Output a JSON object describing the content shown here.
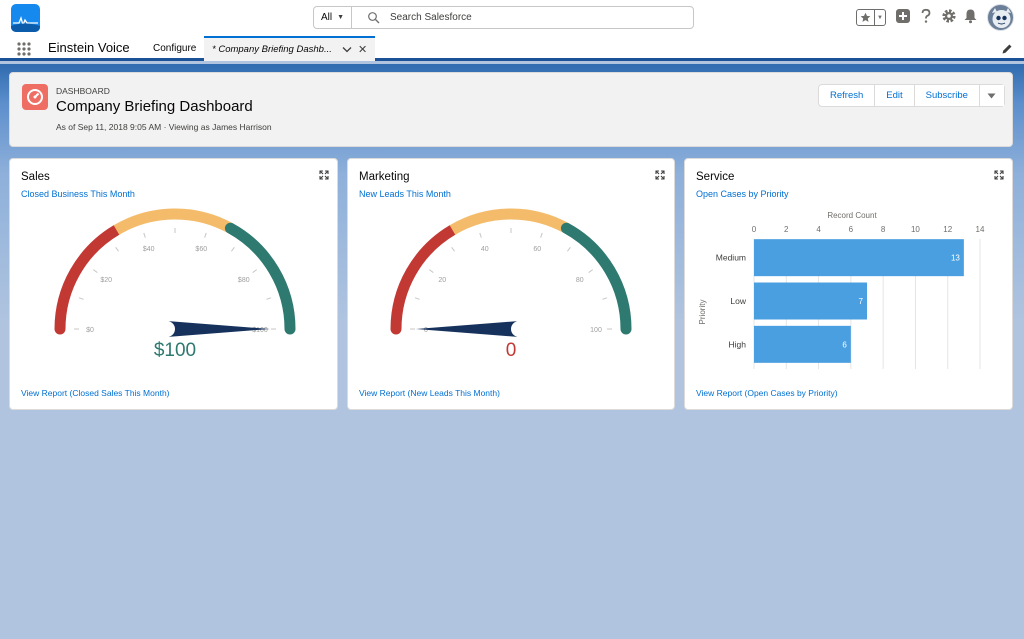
{
  "global_header": {
    "search_scope": "All",
    "search_placeholder": "Search Salesforce"
  },
  "nav": {
    "app_name": "Einstein Voice",
    "items": [
      {
        "label": "Configure"
      }
    ],
    "active_tab": {
      "label": "* Company Briefing Dashb..."
    }
  },
  "dashboard": {
    "kicker": "DASHBOARD",
    "title": "Company Briefing Dashboard",
    "subtitle": "As of Sep 11, 2018 9:05 AM · Viewing as James Harrison",
    "buttons": {
      "refresh": "Refresh",
      "edit": "Edit",
      "subscribe": "Subscribe"
    }
  },
  "cards": {
    "sales": {
      "title": "Sales",
      "subtitle": "Closed Business This Month",
      "value_label": "$100",
      "link": "View Report (Closed Sales This Month)",
      "ticks": [
        "$0",
        "$20",
        "$40",
        "$60",
        "$80",
        "$100"
      ]
    },
    "marketing": {
      "title": "Marketing",
      "subtitle": "New Leads This Month",
      "value_label": "0",
      "link": "View Report (New Leads This Month)",
      "ticks": [
        "0",
        "20",
        "40",
        "60",
        "80",
        "100"
      ]
    },
    "service": {
      "title": "Service",
      "subtitle": "Open Cases by Priority",
      "link": "View Report (Open Cases by Priority)"
    }
  },
  "colors": {
    "gauge_low": "#c23934",
    "gauge_mid": "#f4bc6a",
    "gauge_high": "#2e7970",
    "needle": "#16325c",
    "bar": "#4a9fe0",
    "link": "#0070d2"
  },
  "chart_data": [
    {
      "type": "gauge",
      "title": "Closed Business This Month",
      "value": 100,
      "range": [
        0,
        100
      ],
      "bands": [
        {
          "from": 0,
          "to": 33,
          "color": "#c23934"
        },
        {
          "from": 33,
          "to": 66,
          "color": "#f4bc6a"
        },
        {
          "from": 66,
          "to": 100,
          "color": "#2e7970"
        }
      ],
      "tick_labels": [
        "$0",
        "$20",
        "$40",
        "$60",
        "$80",
        "$100"
      ]
    },
    {
      "type": "gauge",
      "title": "New Leads This Month",
      "value": 0,
      "range": [
        0,
        100
      ],
      "bands": [
        {
          "from": 0,
          "to": 33,
          "color": "#c23934"
        },
        {
          "from": 33,
          "to": 66,
          "color": "#f4bc6a"
        },
        {
          "from": 66,
          "to": 100,
          "color": "#2e7970"
        }
      ],
      "tick_labels": [
        "0",
        "20",
        "40",
        "60",
        "80",
        "100"
      ]
    },
    {
      "type": "bar",
      "title": "Open Cases by Priority",
      "orientation": "horizontal",
      "categories": [
        "Medium",
        "Low",
        "High"
      ],
      "values": [
        13,
        7,
        6
      ],
      "xlabel": "Record Count",
      "ylabel": "Priority",
      "xlim": [
        0,
        14
      ],
      "x_ticks": [
        0,
        2,
        4,
        6,
        8,
        10,
        12,
        14
      ],
      "grid": true
    }
  ]
}
